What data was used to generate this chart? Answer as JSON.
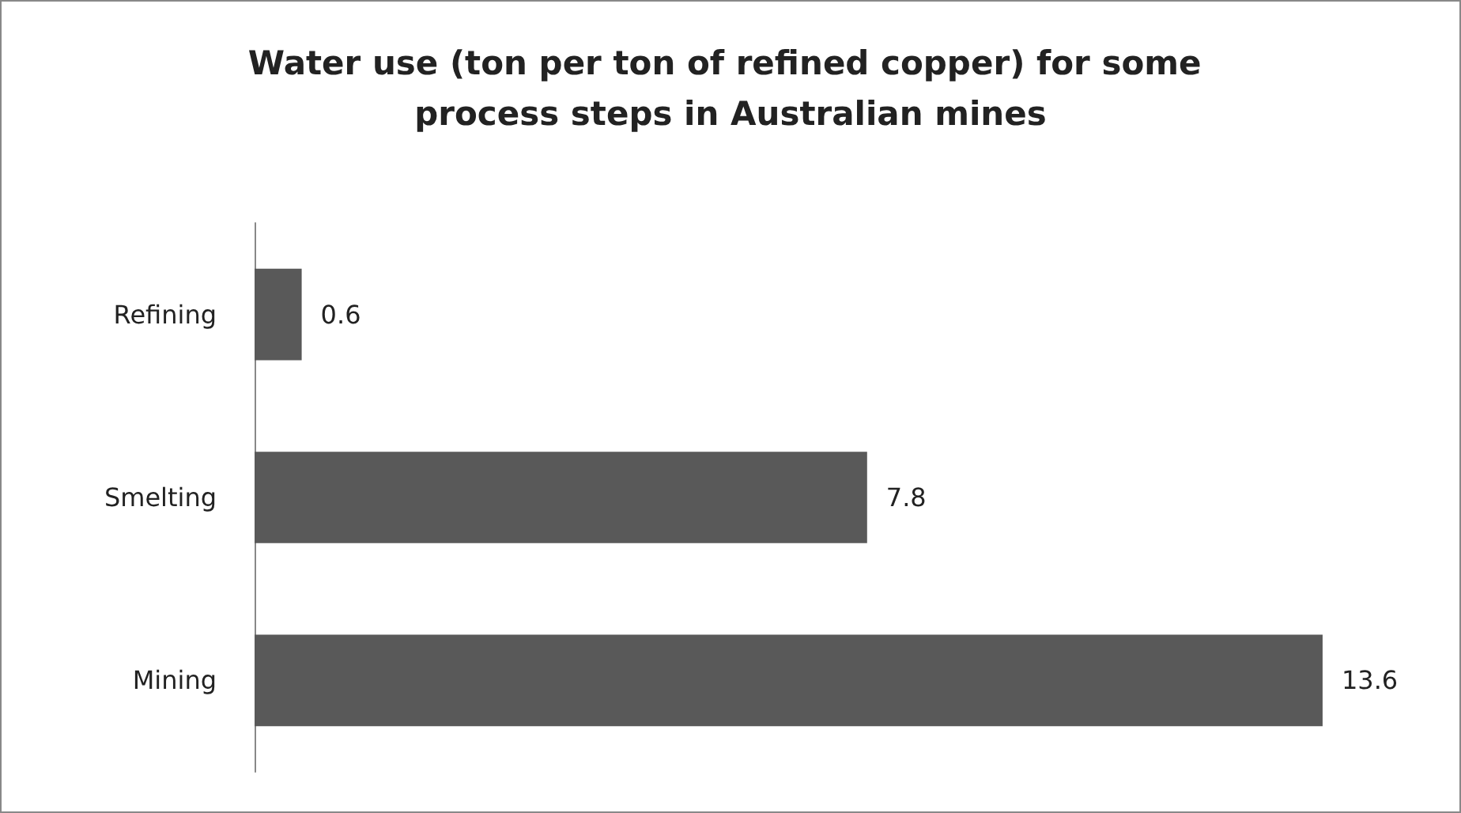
{
  "chart_data": {
    "type": "bar",
    "orientation": "horizontal",
    "title": "Water use (ton per ton of refined copper) for some process steps in Australian mines",
    "categories": [
      "Refining",
      "Smelting",
      "Mining"
    ],
    "values": [
      0.6,
      7.8,
      13.6
    ],
    "color": "#595959",
    "data_labels": true
  }
}
